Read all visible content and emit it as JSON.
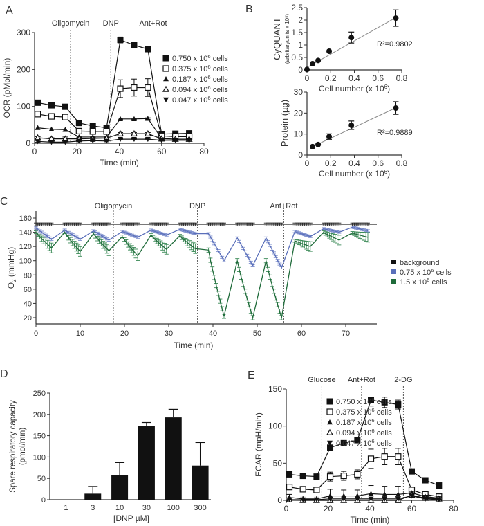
{
  "colors": {
    "black": "#111111",
    "blue": "#5a6fba",
    "green": "#1f6b3a",
    "gray_err": "#888888",
    "bg_line": "#777777"
  },
  "chart_data": [
    {
      "id": "A",
      "panel_label": "A",
      "type": "line",
      "xlabel": "Time (min)",
      "ylabel": "OCR (pMol/min)",
      "xlim": [
        0,
        80
      ],
      "ylim": [
        0,
        300
      ],
      "xticks": [
        "0",
        "20",
        "40",
        "60",
        "80"
      ],
      "yticks": [
        "0",
        "100",
        "200",
        "300"
      ],
      "annotations": [
        {
          "label": "Oligomycin",
          "x": 17
        },
        {
          "label": "DNP",
          "x": 36
        },
        {
          "label": "Ant+Rot",
          "x": 56
        }
      ],
      "x": [
        1.5,
        8,
        14.5,
        21,
        27.5,
        34,
        40.5,
        47,
        53.5,
        60,
        66.5,
        73
      ],
      "legend_position": "right",
      "series": [
        {
          "name": "0.750 x 10^6 cells",
          "label_base": "0.750 x 10",
          "marker": "square-filled",
          "values": [
            110,
            103,
            99,
            55,
            47,
            42,
            280,
            266,
            255,
            25,
            26,
            27
          ],
          "errors": [
            0,
            0,
            0,
            5,
            5,
            4,
            8,
            6,
            6,
            3,
            3,
            3
          ]
        },
        {
          "name": "0.375 x 10^6 cells",
          "label_base": "0.375 x 10",
          "marker": "square-open",
          "values": [
            79,
            73,
            71,
            33,
            32,
            32,
            148,
            151,
            151,
            20,
            18,
            18
          ],
          "errors": [
            0,
            0,
            0,
            3,
            3,
            3,
            24,
            23,
            24,
            2,
            2,
            2
          ]
        },
        {
          "name": "0.187 x 10^6 cells",
          "label_base": "0.187 x 10",
          "marker": "triangle-up-filled",
          "values": [
            42,
            38,
            37,
            17,
            17,
            17,
            66,
            66,
            67,
            13,
            11,
            11
          ],
          "errors": [
            0,
            0,
            0,
            2,
            2,
            2,
            2,
            2,
            2,
            2,
            2,
            2
          ]
        },
        {
          "name": "0.094 x 10^6 cells",
          "label_base": "0.094 x 10",
          "marker": "triangle-up-open",
          "values": [
            15,
            12,
            12,
            12,
            13,
            14,
            26,
            26,
            26,
            12,
            11,
            11
          ],
          "errors": [
            3,
            3,
            5,
            3,
            3,
            3,
            3,
            3,
            3,
            2,
            2,
            2
          ]
        },
        {
          "name": "0.047 x 10^6 cells",
          "label_base": "0.047 x 10",
          "marker": "triangle-down-filled",
          "values": [
            5,
            3,
            3,
            6,
            7,
            6,
            11,
            11,
            11,
            8,
            8,
            8
          ],
          "errors": [
            2,
            2,
            2,
            2,
            2,
            2,
            2,
            2,
            2,
            2,
            2,
            2
          ]
        }
      ]
    },
    {
      "id": "B1",
      "panel_label": "B",
      "type": "scatter",
      "ylabel": "CyQUANT",
      "ylabel_sub": "(arbritaryunits x 10^5)",
      "xlabel": "Cell number (x 10^6)",
      "xlim": [
        0,
        0.8
      ],
      "ylim": [
        0,
        2.5
      ],
      "xticks": [
        "0",
        "0.2",
        "0.4",
        "0.6",
        "0.8"
      ],
      "yticks": [
        "0",
        "0.5",
        "1",
        "1.5",
        "2",
        "2.5"
      ],
      "x": [
        0,
        0.047,
        0.094,
        0.187,
        0.375,
        0.75
      ],
      "values": [
        0.02,
        0.25,
        0.38,
        0.75,
        1.3,
        2.08
      ],
      "errors": [
        0,
        0,
        0,
        0,
        0.22,
        0.33
      ],
      "fit": {
        "x": [
          0,
          0.75
        ],
        "y": [
          0.1,
          2.1
        ]
      },
      "annotation": "R²=0.9802"
    },
    {
      "id": "B2",
      "type": "scatter",
      "ylabel": "Protein (µg)",
      "xlabel": "Cell number (x 10^6)",
      "xlim": [
        0,
        0.8
      ],
      "ylim": [
        0,
        30
      ],
      "xticks": [
        "0",
        "0.2",
        "0.4",
        "0.6",
        "0.8"
      ],
      "yticks": [
        "0",
        "10",
        "20",
        "30"
      ],
      "x": [
        0.047,
        0.094,
        0.187,
        0.375,
        0.75
      ],
      "values": [
        4,
        5,
        8.8,
        14.2,
        22.4
      ],
      "errors": [
        0,
        0,
        1.3,
        2,
        3
      ],
      "fit": {
        "x": [
          0.047,
          0.75
        ],
        "y": [
          4,
          22.5
        ]
      },
      "annotation": "R²=0.9889"
    },
    {
      "id": "C",
      "panel_label": "C",
      "type": "line",
      "xlabel": "Time (min)",
      "ylabel": "O2 (mmHg)",
      "xlim": [
        0,
        74
      ],
      "ylim": [
        10,
        170
      ],
      "xticks": [
        "0",
        "10",
        "20",
        "30",
        "40",
        "50",
        "60",
        "70"
      ],
      "yticks": [
        "20",
        "40",
        "60",
        "80",
        "100",
        "120",
        "140",
        "160"
      ],
      "annotations": [
        {
          "label": "Oligomycin",
          "x": 17.5
        },
        {
          "label": "DNP",
          "x": 36.5
        },
        {
          "label": "Ant+Rot",
          "x": 56
        }
      ],
      "cycles": [
        {
          "t0": 0,
          "t1": 3.5,
          "bg": 151,
          "blue": [
            146,
            130
          ],
          "green": [
            140,
            118
          ]
        },
        {
          "t0": 6.5,
          "t1": 10,
          "bg": 151,
          "blue": [
            143,
            130
          ],
          "green": [
            140,
            113
          ]
        },
        {
          "t0": 13,
          "t1": 16.5,
          "bg": 151,
          "blue": [
            142,
            129
          ],
          "green": [
            138,
            114
          ]
        },
        {
          "t0": 19.5,
          "t1": 23,
          "bg": 151,
          "blue": [
            141,
            133
          ],
          "green": [
            134,
            107
          ]
        },
        {
          "t0": 26,
          "t1": 29.5,
          "bg": 151,
          "blue": [
            143,
            136
          ],
          "green": [
            136,
            116
          ]
        },
        {
          "t0": 32.5,
          "t1": 36,
          "bg": 151,
          "blue": [
            144,
            138
          ],
          "green": [
            135,
            117
          ]
        },
        {
          "t0": 39,
          "t1": 42.5,
          "bg": 151,
          "blue": [
            138,
            100
          ],
          "green": [
            115,
            22
          ]
        },
        {
          "t0": 45.5,
          "t1": 49,
          "bg": 151,
          "blue": [
            132,
            93
          ],
          "green": [
            100,
            20
          ]
        },
        {
          "t0": 52,
          "t1": 55.5,
          "bg": 151,
          "blue": [
            132,
            90
          ],
          "green": [
            100,
            20
          ]
        },
        {
          "t0": 58.5,
          "t1": 62,
          "bg": 151,
          "blue": [
            141,
            134
          ],
          "green": [
            128,
            120
          ]
        },
        {
          "t0": 65,
          "t1": 68.5,
          "bg": 151,
          "blue": [
            145,
            140
          ],
          "green": [
            140,
            129
          ]
        },
        {
          "t0": 71.5,
          "t1": 75,
          "bg": 151,
          "blue": [
            147,
            142
          ],
          "green": [
            139,
            133
          ]
        }
      ],
      "legend_position": "right",
      "legend": [
        {
          "label": "background",
          "color": "#111111"
        },
        {
          "label_base": "0.75 x 10",
          "label": "0.75 x 10^6 cells",
          "color": "#5a6fba"
        },
        {
          "label_base": "1.5 x 10",
          "label": "1.5 x 10^6 cells",
          "color": "#1f6b3a"
        }
      ]
    },
    {
      "id": "D",
      "panel_label": "D",
      "type": "bar",
      "xlabel": "[DNP µM]",
      "ylabel": "Spare respiratory capacity",
      "ylabel2": "(pmol/min)",
      "ylim": [
        0,
        250
      ],
      "yticks": [
        "0",
        "50",
        "100",
        "150",
        "200",
        "250"
      ],
      "categories": [
        "1",
        "3",
        "10",
        "30",
        "100",
        "300"
      ],
      "values": [
        0,
        14,
        57,
        173,
        193,
        80
      ],
      "errors": [
        0,
        17,
        30,
        8,
        19,
        54
      ]
    },
    {
      "id": "E",
      "panel_label": "E",
      "type": "line",
      "xlabel": "Time (min)",
      "ylabel": "ECAR (mpH/min)",
      "xlim": [
        0,
        80
      ],
      "ylim": [
        0,
        150
      ],
      "xticks": [
        "0",
        "20",
        "40",
        "60",
        "80"
      ],
      "yticks": [
        "0",
        "50",
        "100",
        "150"
      ],
      "annotations": [
        {
          "label": "Glucose",
          "x": 17
        },
        {
          "label": "Ant+Rot",
          "x": 36
        },
        {
          "label": "2-DG",
          "x": 56
        }
      ],
      "x": [
        1.5,
        8,
        14.5,
        21,
        27.5,
        34,
        40.5,
        47,
        53.5,
        60,
        66.5,
        73
      ],
      "legend_position": "right",
      "series": [
        {
          "name": "0.750 x 10^6 cells",
          "label_base": "0.750 x 10",
          "marker": "square-filled",
          "values": [
            35,
            33,
            32,
            71,
            77,
            81,
            135,
            132,
            129,
            39,
            27,
            20
          ],
          "errors": [
            0,
            0,
            0,
            0,
            0,
            0,
            8,
            7,
            6,
            0,
            0,
            0
          ]
        },
        {
          "name": "0.375 x 10^6 cells",
          "label_base": "0.375 x 10",
          "marker": "square-open",
          "values": [
            18,
            15,
            14,
            32,
            33,
            35,
            56,
            59,
            59,
            14,
            8,
            5
          ],
          "errors": [
            0,
            0,
            0,
            6,
            6,
            6,
            13,
            11,
            11,
            2,
            2,
            2
          ]
        },
        {
          "name": "0.187 x 10^6 cells",
          "label_base": "0.187 x 10",
          "marker": "triangle-up-filled",
          "values": [
            4,
            2,
            2,
            6,
            6,
            6,
            9,
            8,
            8,
            10,
            5,
            3
          ],
          "errors": [
            4,
            4,
            4,
            9,
            8,
            8,
            11,
            11,
            11,
            2,
            2,
            2
          ]
        },
        {
          "name": "0.094 x 10^6 cells",
          "label_base": "0.094 x 10",
          "marker": "triangle-up-open",
          "values": [
            1,
            0,
            0,
            0,
            0,
            0,
            0,
            0,
            0,
            7,
            3,
            2
          ],
          "errors": [
            0,
            0,
            0,
            0,
            0,
            0,
            0,
            0,
            0,
            2,
            2,
            2
          ]
        },
        {
          "name": "0.047 x 10^6 cells",
          "label_base": "0.047 x 10",
          "marker": "triangle-down-filled",
          "values": [
            1,
            1,
            1,
            2,
            2,
            2,
            2,
            2,
            2,
            6,
            2,
            1
          ],
          "errors": [
            0,
            0,
            0,
            0,
            0,
            0,
            0,
            0,
            0,
            2,
            2,
            2
          ]
        }
      ]
    }
  ]
}
